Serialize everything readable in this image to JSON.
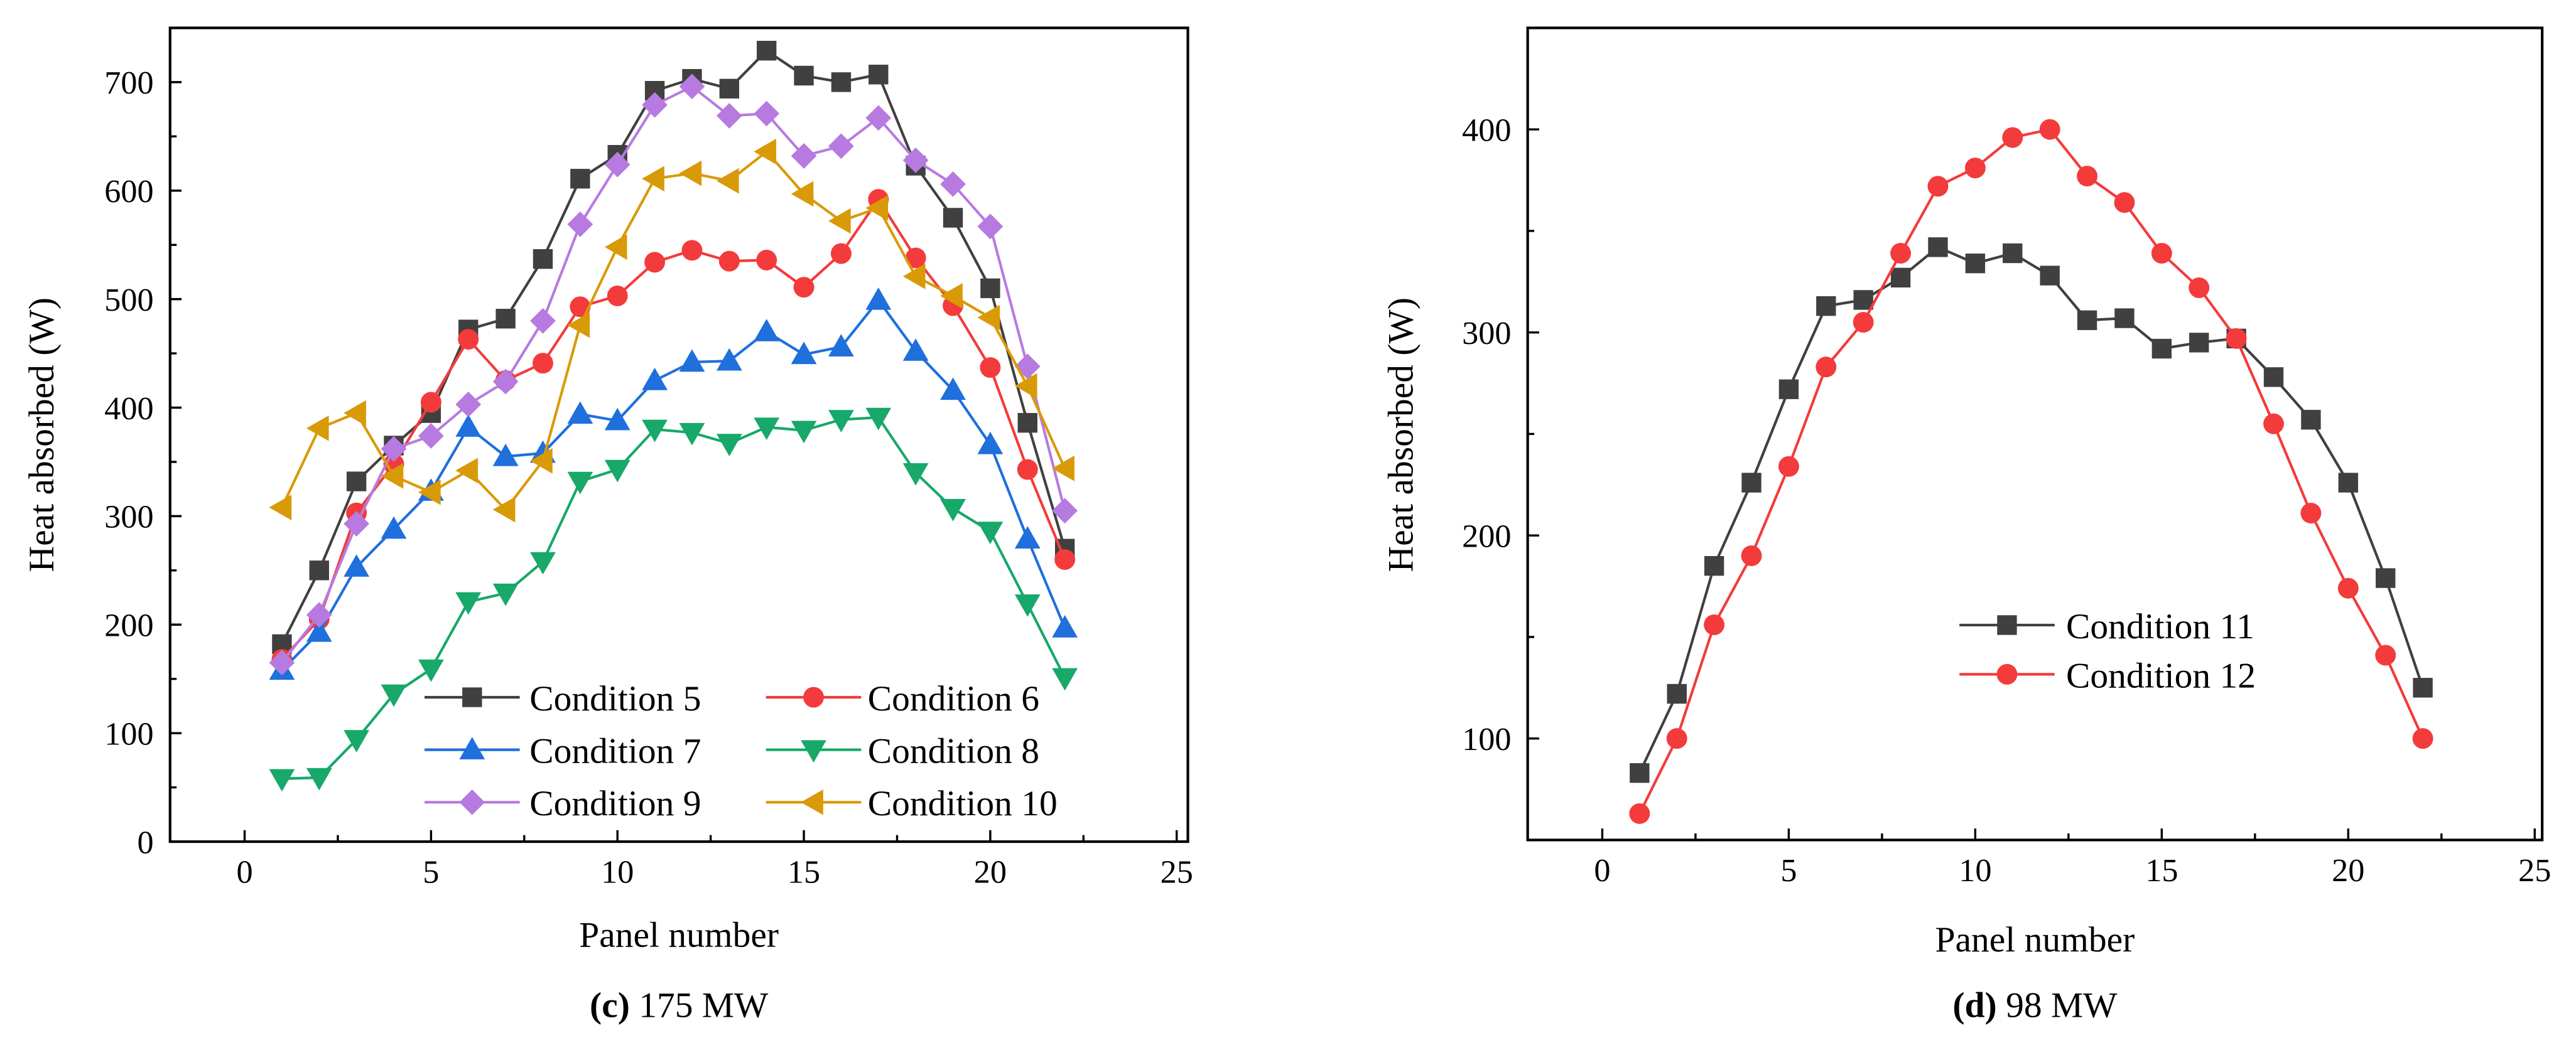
{
  "chart_data": [
    {
      "type": "line",
      "caption_letter": "(c)",
      "caption_text": " 175 MW",
      "xlabel": "Panel number",
      "ylabel": "Heat absorbed (W)",
      "xlim": [
        -2,
        25.3
      ],
      "ylim": [
        0,
        750
      ],
      "xticks": [
        0,
        5,
        10,
        15,
        20,
        25
      ],
      "yticks": [
        0,
        100,
        200,
        300,
        400,
        500,
        600,
        700
      ],
      "legend_position": "bottom-center",
      "x": [
        1,
        2,
        3,
        4,
        5,
        6,
        7,
        8,
        9,
        10,
        11,
        12,
        13,
        14,
        15,
        16,
        17,
        18,
        19,
        20,
        21,
        22
      ],
      "series": [
        {
          "name": "Condition 5",
          "color": "#404040",
          "marker": "square",
          "values": [
            182,
            250,
            332,
            365,
            395,
            472,
            482,
            537,
            611,
            633,
            692,
            703,
            694,
            729,
            706,
            700,
            707,
            623,
            575,
            510,
            386,
            270
          ]
        },
        {
          "name": "Condition 6",
          "color": "#f33b3b",
          "marker": "circle",
          "values": [
            168,
            205,
            303,
            348,
            405,
            463,
            425,
            441,
            493,
            503,
            534,
            545,
            535,
            536,
            511,
            542,
            592,
            538,
            494,
            437,
            343,
            260
          ]
        },
        {
          "name": "Condition 7",
          "color": "#1f6fdc",
          "marker": "triangle-up",
          "values": [
            158,
            193,
            253,
            288,
            323,
            382,
            355,
            358,
            394,
            388,
            425,
            442,
            443,
            470,
            449,
            456,
            499,
            452,
            416,
            366,
            279,
            197
          ]
        },
        {
          "name": "Condition 8",
          "color": "#17a86a",
          "marker": "triangle-down",
          "values": [
            58,
            59,
            94,
            136,
            159,
            221,
            229,
            258,
            332,
            343,
            380,
            377,
            367,
            382,
            379,
            389,
            391,
            340,
            307,
            286,
            219,
            151
          ]
        },
        {
          "name": "Condition 9",
          "color": "#b77ae0",
          "marker": "diamond",
          "values": [
            165,
            209,
            293,
            362,
            374,
            403,
            424,
            480,
            569,
            624,
            679,
            696,
            669,
            671,
            632,
            641,
            667,
            628,
            606,
            567,
            438,
            305
          ]
        },
        {
          "name": "Condition 10",
          "color": "#d99a08",
          "marker": "triangle-left",
          "values": [
            308,
            381,
            395,
            337,
            322,
            342,
            306,
            351,
            476,
            548,
            611,
            616,
            609,
            636,
            597,
            572,
            584,
            521,
            503,
            483,
            420,
            344
          ]
        }
      ]
    },
    {
      "type": "line",
      "caption_letter": "(d)",
      "caption_text": " 98 MW",
      "xlabel": "Panel number",
      "ylabel": "Heat absorbed (W)",
      "xlim": [
        -2,
        25.2
      ],
      "ylim": [
        50,
        450
      ],
      "xticks": [
        0,
        5,
        10,
        15,
        20,
        25
      ],
      "yticks": [
        100,
        200,
        300,
        400
      ],
      "legend_position": "lower-right",
      "x": [
        1,
        2,
        3,
        4,
        5,
        6,
        7,
        8,
        9,
        10,
        11,
        12,
        13,
        14,
        15,
        16,
        17,
        18,
        19,
        20,
        21,
        22
      ],
      "series": [
        {
          "name": "Condition 11",
          "color": "#404040",
          "marker": "square",
          "values": [
            83,
            122,
            185,
            226,
            272,
            313,
            316,
            327,
            342,
            334,
            339,
            328,
            306,
            307,
            292,
            295,
            297,
            278,
            257,
            226,
            179,
            125
          ]
        },
        {
          "name": "Condition 12",
          "color": "#f33b3b",
          "marker": "circle",
          "values": [
            63,
            100,
            156,
            190,
            234,
            283,
            305,
            339,
            372,
            381,
            396,
            400,
            377,
            364,
            339,
            322,
            297,
            255,
            211,
            174,
            141,
            100
          ]
        }
      ]
    }
  ]
}
